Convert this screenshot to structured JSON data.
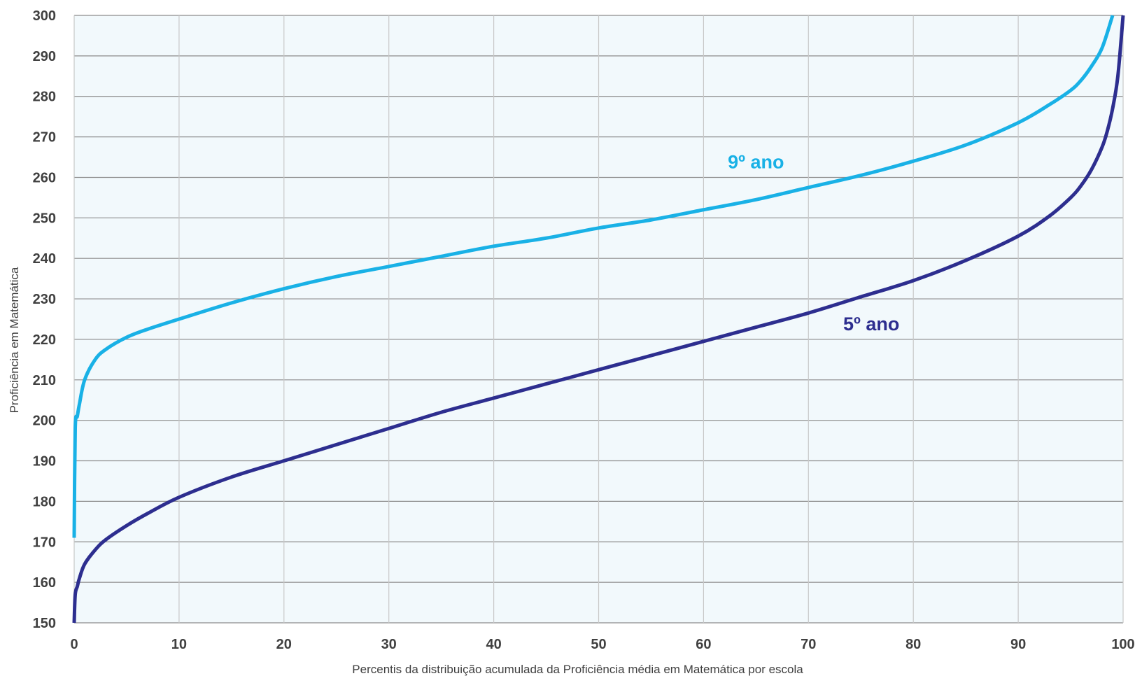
{
  "chart_data": {
    "type": "line",
    "title": "",
    "xlabel": "Percentis da distribuição acumulada da Proficiência média em Matemática por escola",
    "ylabel": "Proficiência em Matemática",
    "xlim": [
      0,
      100
    ],
    "ylim": [
      150,
      300
    ],
    "x_ticks": [
      0,
      10,
      20,
      30,
      40,
      50,
      60,
      70,
      80,
      90,
      100
    ],
    "y_ticks": [
      150,
      160,
      170,
      180,
      190,
      200,
      210,
      220,
      230,
      240,
      250,
      260,
      270,
      280,
      290,
      300
    ],
    "grid": true,
    "legend": "none",
    "plot_background": "#f2f9fc",
    "series": [
      {
        "name": "9º ano",
        "color": "#19b1e6",
        "x": [
          0,
          0.1,
          0.3,
          0.5,
          1,
          2,
          3,
          5,
          7,
          10,
          15,
          20,
          25,
          30,
          35,
          40,
          45,
          50,
          55,
          60,
          65,
          70,
          75,
          80,
          85,
          90,
          93,
          95,
          96,
          97,
          98,
          99
        ],
        "y": [
          171,
          198,
          201,
          204,
          210,
          215,
          217.5,
          220.5,
          222.5,
          225,
          229,
          232.5,
          235.5,
          238,
          240.5,
          243,
          245,
          247.5,
          249.5,
          252,
          254.5,
          257.5,
          260.5,
          264,
          268,
          273.5,
          278,
          281.5,
          284,
          287.5,
          292,
          300
        ]
      },
      {
        "name": "5º ano",
        "color": "#2d2e8f",
        "x": [
          0,
          0.1,
          0.3,
          0.5,
          1,
          2,
          3,
          5,
          7,
          10,
          15,
          20,
          25,
          30,
          35,
          40,
          45,
          50,
          55,
          60,
          65,
          70,
          75,
          80,
          85,
          90,
          93,
          95,
          96,
          97,
          98,
          98.5,
          99,
          99.5,
          100
        ],
        "y": [
          150,
          157,
          159,
          161,
          164.5,
          168,
          170.5,
          174,
          177,
          181,
          186,
          190,
          194,
          198,
          202,
          205.5,
          209,
          212.5,
          216,
          219.5,
          223,
          226.5,
          230.5,
          234.5,
          239.5,
          245.5,
          250.5,
          255,
          258,
          262,
          267.5,
          271.5,
          277,
          285,
          300
        ]
      }
    ],
    "annotations": [
      {
        "text": "9º ano",
        "series": 0,
        "x": 65,
        "y": 264
      },
      {
        "text": "5º ano",
        "series": 1,
        "x": 76,
        "y": 224
      }
    ]
  }
}
